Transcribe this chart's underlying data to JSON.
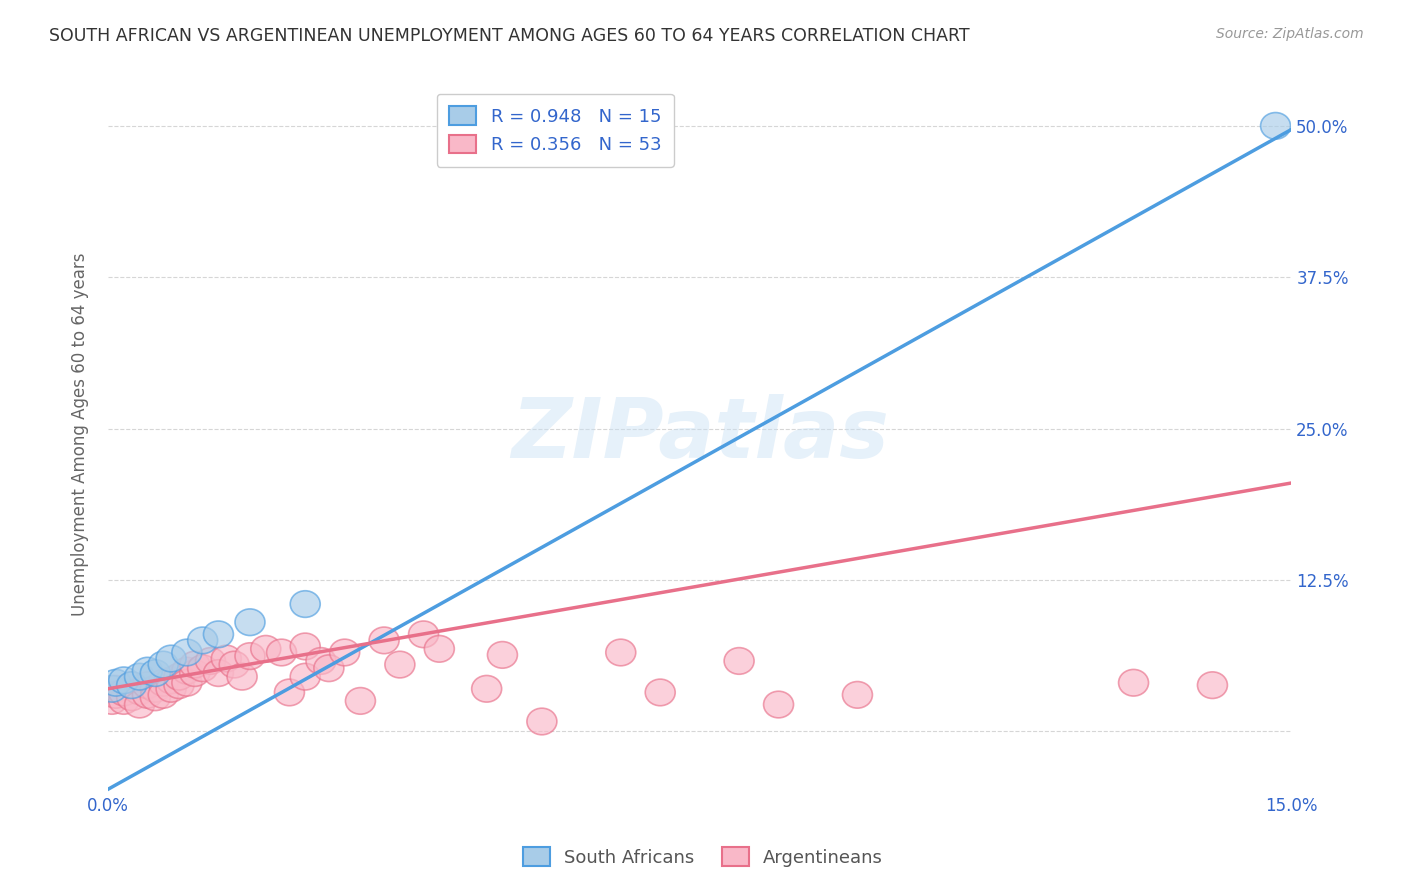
{
  "title": "SOUTH AFRICAN VS ARGENTINEAN UNEMPLOYMENT AMONG AGES 60 TO 64 YEARS CORRELATION CHART",
  "source": "Source: ZipAtlas.com",
  "ylabel": "Unemployment Among Ages 60 to 64 years",
  "xlim": [
    0.0,
    0.15
  ],
  "ylim": [
    -0.05,
    0.54
  ],
  "xticks": [
    0.0,
    0.03,
    0.06,
    0.09,
    0.12,
    0.15
  ],
  "xtick_labels": [
    "0.0%",
    "",
    "",
    "",
    "",
    "15.0%"
  ],
  "yticks": [
    0.0,
    0.125,
    0.25,
    0.375,
    0.5
  ],
  "ytick_labels_right": [
    "",
    "12.5%",
    "25.0%",
    "37.5%",
    "50.0%"
  ],
  "blue_scatter": [
    [
      0.0005,
      0.035
    ],
    [
      0.001,
      0.04
    ],
    [
      0.002,
      0.042
    ],
    [
      0.003,
      0.038
    ],
    [
      0.004,
      0.045
    ],
    [
      0.005,
      0.05
    ],
    [
      0.006,
      0.048
    ],
    [
      0.007,
      0.055
    ],
    [
      0.008,
      0.06
    ],
    [
      0.01,
      0.065
    ],
    [
      0.012,
      0.075
    ],
    [
      0.014,
      0.08
    ],
    [
      0.018,
      0.09
    ],
    [
      0.025,
      0.105
    ],
    [
      0.148,
      0.5
    ]
  ],
  "pink_scatter": [
    [
      0.0005,
      0.025
    ],
    [
      0.001,
      0.03
    ],
    [
      0.001,
      0.035
    ],
    [
      0.002,
      0.025
    ],
    [
      0.002,
      0.032
    ],
    [
      0.003,
      0.028
    ],
    [
      0.003,
      0.038
    ],
    [
      0.004,
      0.033
    ],
    [
      0.004,
      0.022
    ],
    [
      0.005,
      0.03
    ],
    [
      0.005,
      0.038
    ],
    [
      0.006,
      0.035
    ],
    [
      0.006,
      0.028
    ],
    [
      0.007,
      0.04
    ],
    [
      0.007,
      0.03
    ],
    [
      0.008,
      0.042
    ],
    [
      0.008,
      0.035
    ],
    [
      0.009,
      0.038
    ],
    [
      0.009,
      0.045
    ],
    [
      0.01,
      0.05
    ],
    [
      0.01,
      0.04
    ],
    [
      0.011,
      0.048
    ],
    [
      0.011,
      0.055
    ],
    [
      0.012,
      0.052
    ],
    [
      0.013,
      0.058
    ],
    [
      0.014,
      0.048
    ],
    [
      0.015,
      0.06
    ],
    [
      0.016,
      0.055
    ],
    [
      0.017,
      0.045
    ],
    [
      0.018,
      0.062
    ],
    [
      0.02,
      0.068
    ],
    [
      0.022,
      0.065
    ],
    [
      0.023,
      0.032
    ],
    [
      0.025,
      0.07
    ],
    [
      0.025,
      0.045
    ],
    [
      0.027,
      0.058
    ],
    [
      0.028,
      0.052
    ],
    [
      0.03,
      0.065
    ],
    [
      0.032,
      0.025
    ],
    [
      0.035,
      0.075
    ],
    [
      0.037,
      0.055
    ],
    [
      0.04,
      0.08
    ],
    [
      0.042,
      0.068
    ],
    [
      0.048,
      0.035
    ],
    [
      0.05,
      0.063
    ],
    [
      0.055,
      0.008
    ],
    [
      0.065,
      0.065
    ],
    [
      0.07,
      0.032
    ],
    [
      0.08,
      0.058
    ],
    [
      0.085,
      0.022
    ],
    [
      0.095,
      0.03
    ],
    [
      0.13,
      0.04
    ],
    [
      0.14,
      0.038
    ]
  ],
  "blue_line_x": [
    0.0,
    0.15
  ],
  "blue_line_y": [
    -0.048,
    0.497
  ],
  "pink_line_x": [
    0.0,
    0.15
  ],
  "pink_line_y": [
    0.035,
    0.205
  ],
  "blue_color": "#a8cce8",
  "pink_color": "#f9b8c8",
  "blue_line_color": "#4d9de0",
  "pink_line_color": "#e8708a",
  "watermark": "ZIPatlas",
  "R_blue": 0.948,
  "N_blue": 15,
  "R_pink": 0.356,
  "N_pink": 53,
  "background_color": "#ffffff",
  "grid_color": "#cccccc",
  "title_color": "#333333",
  "axis_label_color": "#666666",
  "legend_text_color": "#3366cc"
}
